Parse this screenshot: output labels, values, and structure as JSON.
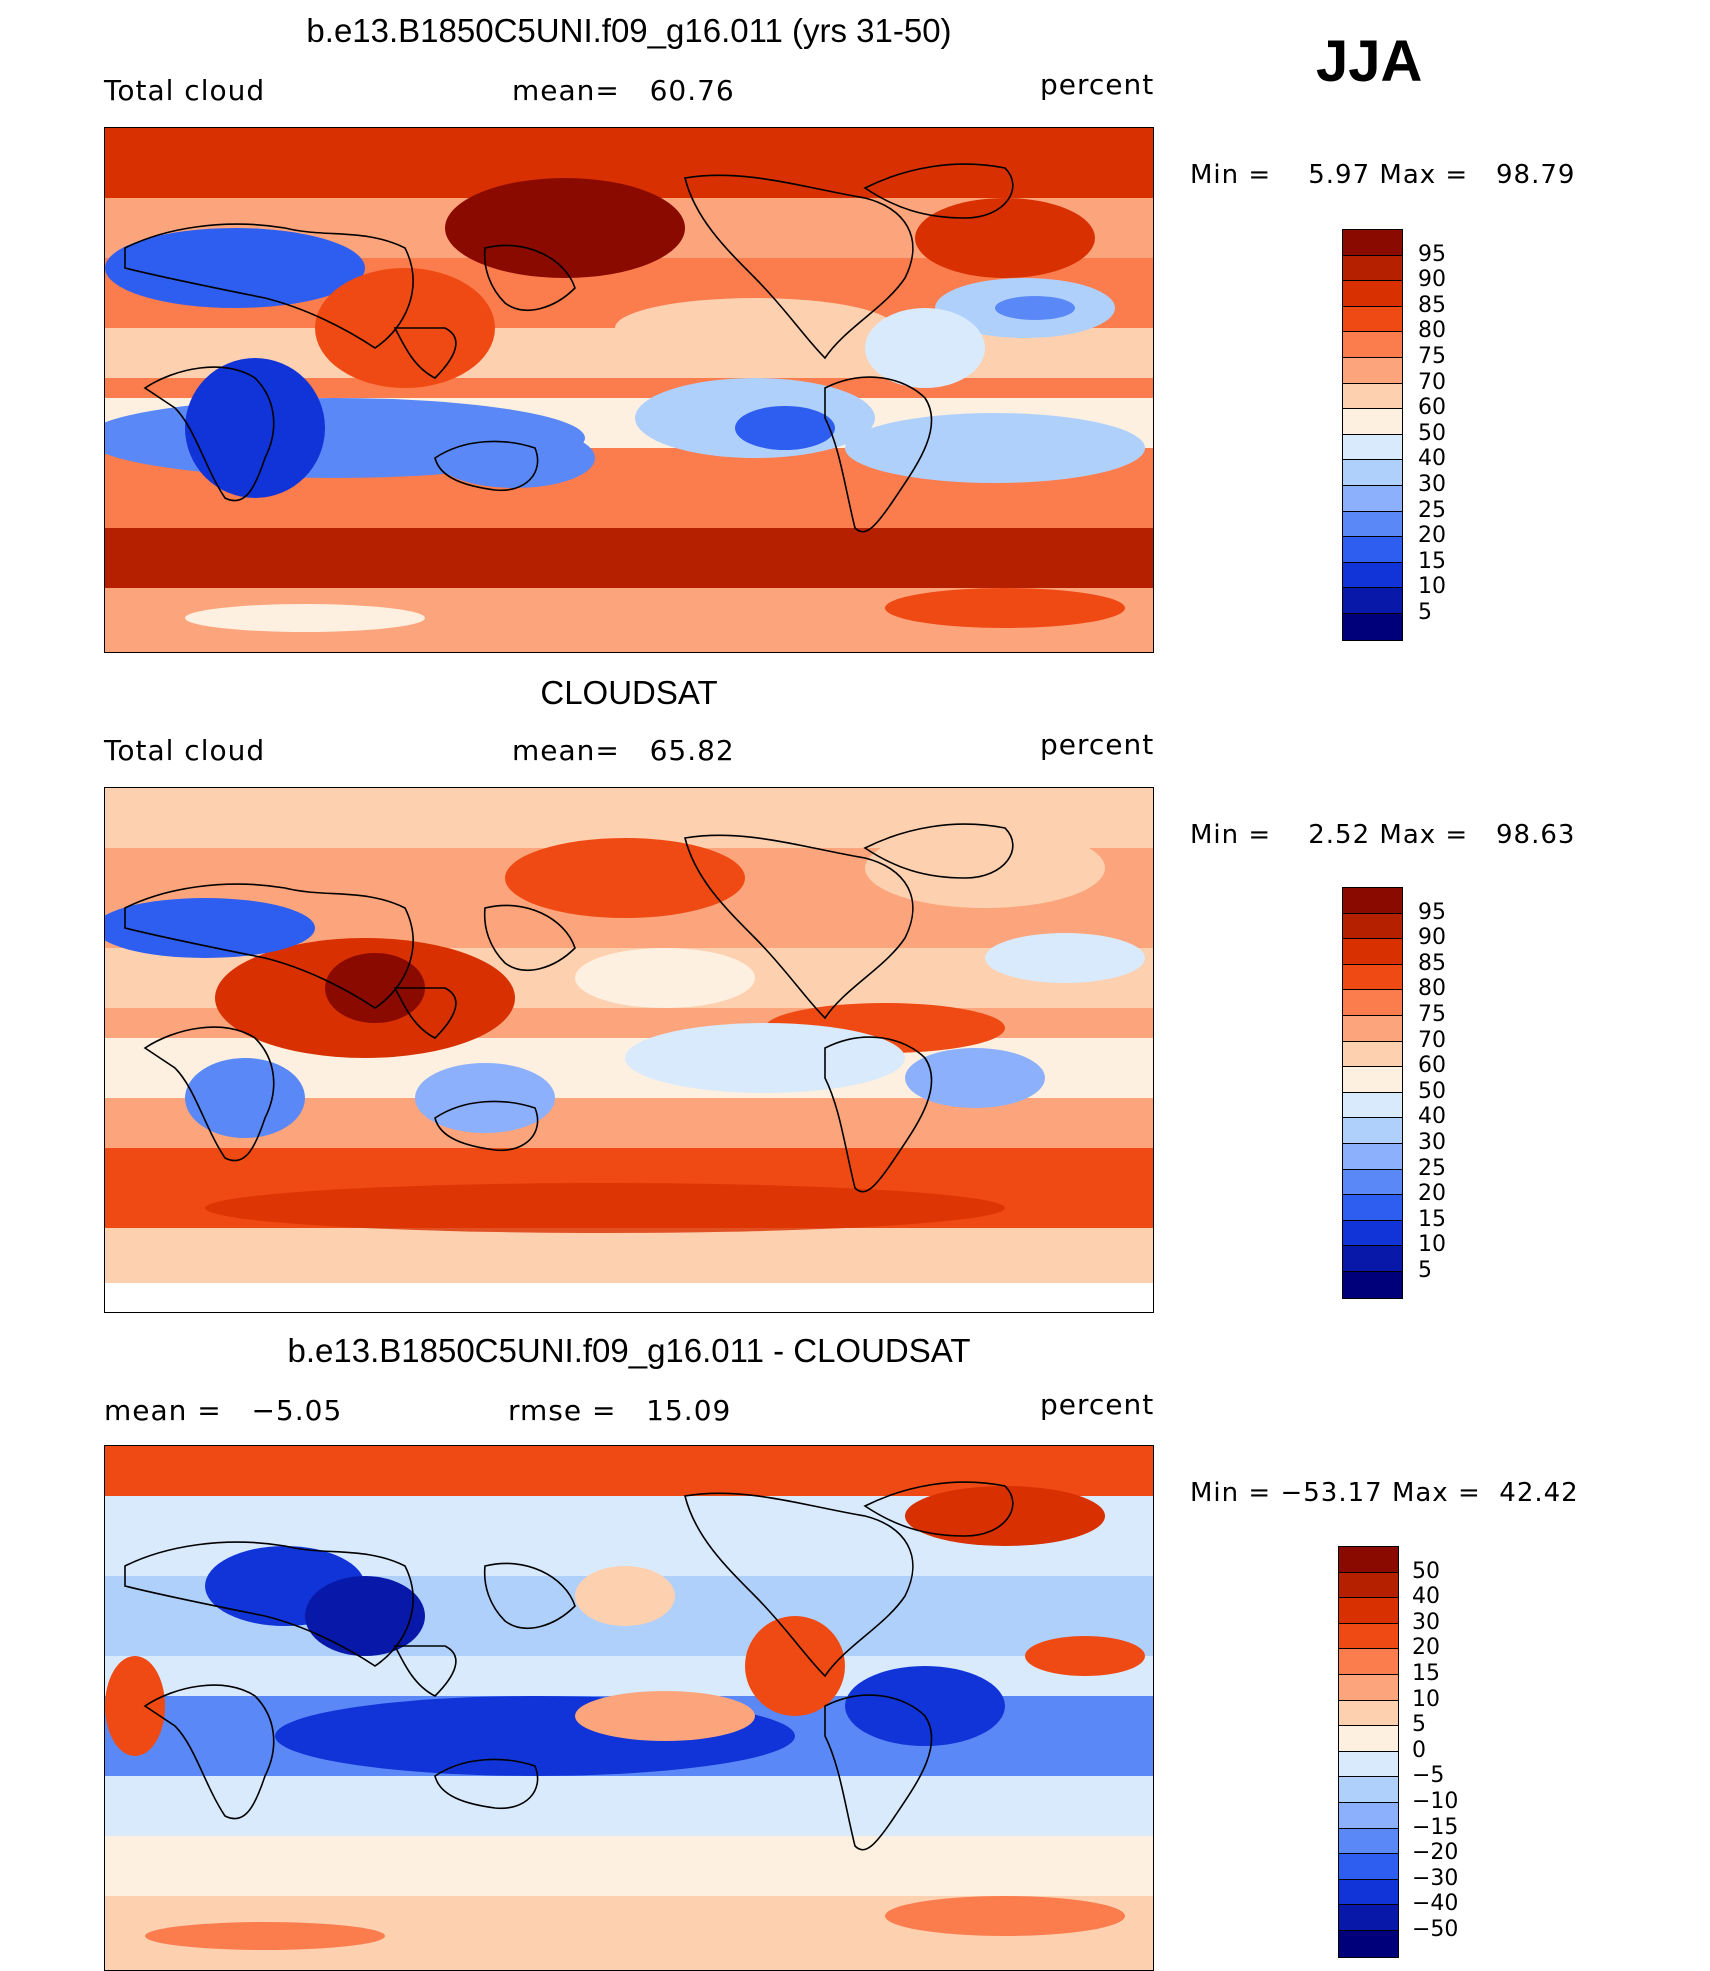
{
  "season": "JJA",
  "panels": [
    {
      "title": "b.e13.B1850C5UNI.f09_g16.011 (yrs 31-50)",
      "left_label": "Total cloud",
      "center_label": "mean=   60.76",
      "right_label": "percent",
      "stats": {
        "min_label": "Min =",
        "min": "5.97",
        "max_label": "Max =",
        "max": "98.79"
      },
      "colorbar": {
        "labels": [
          "95",
          "90",
          "85",
          "80",
          "75",
          "70",
          "60",
          "50",
          "40",
          "30",
          "25",
          "20",
          "15",
          "10",
          "5"
        ],
        "colors": [
          "#8b0a00",
          "#b42000",
          "#d83000",
          "#f04a14",
          "#fb7c4c",
          "#fca57c",
          "#fdd0b0",
          "#fdf0e0",
          "#d8eafc",
          "#b0d0fc",
          "#8cb0fc",
          "#5a88f6",
          "#2e5ef0",
          "#1034d8",
          "#0818a8",
          "#00007a"
        ]
      },
      "map_theme": "model"
    },
    {
      "title": "CLOUDSAT",
      "left_label": "Total cloud",
      "center_label": "mean=   65.82",
      "right_label": "percent",
      "stats": {
        "min_label": "Min =",
        "min": "2.52",
        "max_label": "Max =",
        "max": "98.63"
      },
      "colorbar": {
        "labels": [
          "95",
          "90",
          "85",
          "80",
          "75",
          "70",
          "60",
          "50",
          "40",
          "30",
          "25",
          "20",
          "15",
          "10",
          "5"
        ],
        "colors": [
          "#8b0a00",
          "#b42000",
          "#d83000",
          "#f04a14",
          "#fb7c4c",
          "#fca57c",
          "#fdd0b0",
          "#fdf0e0",
          "#d8eafc",
          "#b0d0fc",
          "#8cb0fc",
          "#5a88f6",
          "#2e5ef0",
          "#1034d8",
          "#0818a8",
          "#00007a"
        ]
      },
      "map_theme": "obs"
    },
    {
      "title": "b.e13.B1850C5UNI.f09_g16.011 - CLOUDSAT",
      "left_label": "mean =   −5.05",
      "center_label": "rmse =   15.09",
      "right_label": "percent",
      "stats": {
        "min_label": "Min =",
        "min": "−53.17",
        "max_label": "Max =",
        "max": "42.42"
      },
      "colorbar": {
        "labels": [
          "50",
          "40",
          "30",
          "20",
          "15",
          "10",
          "5",
          "0",
          "−5",
          "−10",
          "−15",
          "−20",
          "−30",
          "−40",
          "−50"
        ],
        "colors": [
          "#8b0a00",
          "#b42000",
          "#d83000",
          "#f04a14",
          "#fb7c4c",
          "#fca57c",
          "#fdd0b0",
          "#fdf0e0",
          "#d8eafc",
          "#b0d0fc",
          "#8cb0fc",
          "#5a88f6",
          "#2e5ef0",
          "#1034d8",
          "#0818a8",
          "#00007a"
        ]
      },
      "map_theme": "diff"
    }
  ]
}
